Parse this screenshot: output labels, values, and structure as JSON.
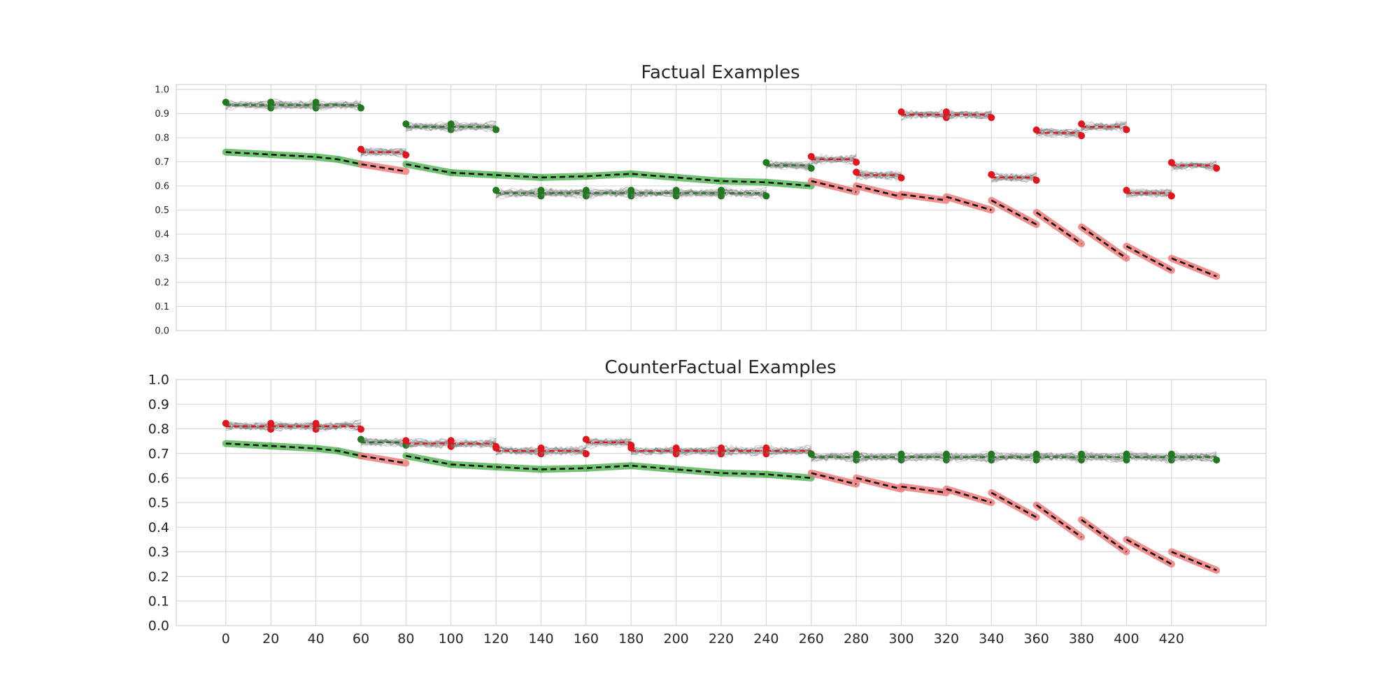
{
  "colors": {
    "grid": "#d9d9d9",
    "band": "#7a7a7a",
    "seg_green": "#1f7a1f",
    "seg_red": "#e0161d",
    "trend_black": "#111111",
    "trend_green_halo": "#5cb85c",
    "trend_red_halo": "#f07b7b"
  },
  "chart_data": [
    {
      "type": "line",
      "title": "Factual Examples",
      "xlabel": "",
      "ylabel": "",
      "xlim": [
        -22,
        462
      ],
      "ylim": [
        0,
        1.02
      ],
      "x_ticks": [
        0,
        20,
        40,
        60,
        80,
        100,
        120,
        140,
        160,
        180,
        200,
        220,
        240,
        260,
        280,
        300,
        320,
        340,
        360,
        380,
        400,
        420
      ],
      "y_ticks": [
        0.0,
        0.1,
        0.2,
        0.3,
        0.4,
        0.5,
        0.6,
        0.7,
        0.8,
        0.9,
        1.0
      ],
      "y_tick_labels": [
        "0.0",
        "0.1",
        "0.2",
        "0.3",
        "0.4",
        "0.5",
        "0.6",
        "0.7",
        "0.8",
        "0.9",
        "1.0"
      ],
      "grid": true,
      "series": [
        {
          "role": "trend",
          "points": [
            [
              0,
              0.74
            ],
            [
              20,
              0.73
            ],
            [
              40,
              0.72
            ],
            [
              50,
              0.71
            ],
            [
              60,
              0.69
            ],
            [
              80,
              0.66
            ],
            [
              80,
              0.69
            ],
            [
              100,
              0.655
            ],
            [
              120,
              0.645
            ],
            [
              140,
              0.635
            ],
            [
              160,
              0.64
            ],
            [
              180,
              0.65
            ],
            [
              200,
              0.635
            ],
            [
              220,
              0.62
            ],
            [
              240,
              0.615
            ],
            [
              260,
              0.6
            ],
            [
              260,
              0.62
            ],
            [
              280,
              0.575
            ],
            [
              280,
              0.6
            ],
            [
              300,
              0.555
            ],
            [
              300,
              0.565
            ],
            [
              320,
              0.54
            ],
            [
              320,
              0.555
            ],
            [
              340,
              0.5
            ],
            [
              340,
              0.54
            ],
            [
              360,
              0.44
            ],
            [
              360,
              0.49
            ],
            [
              380,
              0.36
            ],
            [
              380,
              0.43
            ],
            [
              400,
              0.3
            ],
            [
              400,
              0.35
            ],
            [
              420,
              0.25
            ],
            [
              420,
              0.3
            ],
            [
              440,
              0.225
            ]
          ],
          "class_by_x": [
            [
              0,
              60,
              "green"
            ],
            [
              60,
              80,
              "red"
            ],
            [
              80,
              260,
              "green"
            ],
            [
              260,
              440,
              "red"
            ]
          ]
        },
        {
          "role": "segments",
          "windows": [
            {
              "x0": 0,
              "x1": 20,
              "y": 0.935,
              "class": "green"
            },
            {
              "x0": 20,
              "x1": 40,
              "y": 0.935,
              "class": "green"
            },
            {
              "x0": 40,
              "x1": 60,
              "y": 0.935,
              "class": "green"
            },
            {
              "x0": 60,
              "x1": 80,
              "y": 0.74,
              "class": "red"
            },
            {
              "x0": 80,
              "x1": 100,
              "y": 0.845,
              "class": "green"
            },
            {
              "x0": 100,
              "x1": 120,
              "y": 0.845,
              "class": "green"
            },
            {
              "x0": 120,
              "x1": 140,
              "y": 0.57,
              "class": "green"
            },
            {
              "x0": 140,
              "x1": 160,
              "y": 0.57,
              "class": "green"
            },
            {
              "x0": 160,
              "x1": 180,
              "y": 0.57,
              "class": "green"
            },
            {
              "x0": 180,
              "x1": 200,
              "y": 0.57,
              "class": "green"
            },
            {
              "x0": 200,
              "x1": 220,
              "y": 0.57,
              "class": "green"
            },
            {
              "x0": 220,
              "x1": 240,
              "y": 0.57,
              "class": "green"
            },
            {
              "x0": 240,
              "x1": 260,
              "y": 0.685,
              "class": "green"
            },
            {
              "x0": 260,
              "x1": 280,
              "y": 0.71,
              "class": "red"
            },
            {
              "x0": 280,
              "x1": 300,
              "y": 0.645,
              "class": "red"
            },
            {
              "x0": 300,
              "x1": 320,
              "y": 0.895,
              "class": "red"
            },
            {
              "x0": 320,
              "x1": 340,
              "y": 0.895,
              "class": "red"
            },
            {
              "x0": 340,
              "x1": 360,
              "y": 0.635,
              "class": "red"
            },
            {
              "x0": 360,
              "x1": 380,
              "y": 0.82,
              "class": "red"
            },
            {
              "x0": 380,
              "x1": 400,
              "y": 0.845,
              "class": "red"
            },
            {
              "x0": 400,
              "x1": 420,
              "y": 0.57,
              "class": "red"
            },
            {
              "x0": 420,
              "x1": 440,
              "y": 0.685,
              "class": "red"
            }
          ]
        }
      ]
    },
    {
      "type": "line",
      "title": "CounterFactual Examples",
      "xlabel": "",
      "ylabel": "",
      "xlim": [
        -22,
        462
      ],
      "ylim": [
        0,
        1.0
      ],
      "x_ticks": [
        0,
        20,
        40,
        60,
        80,
        100,
        120,
        140,
        160,
        180,
        200,
        220,
        240,
        260,
        280,
        300,
        320,
        340,
        360,
        380,
        400,
        420
      ],
      "y_ticks": [
        0.0,
        0.1,
        0.2,
        0.3,
        0.4,
        0.5,
        0.6,
        0.7,
        0.8,
        0.9,
        1.0
      ],
      "y_tick_labels": [
        "0.0",
        "0.1",
        "0.2",
        "0.3",
        "0.4",
        "0.5",
        "0.6",
        "0.7",
        "0.8",
        "0.9",
        "1.0"
      ],
      "grid": true,
      "series": [
        {
          "role": "trend",
          "points": [
            [
              0,
              0.74
            ],
            [
              20,
              0.73
            ],
            [
              40,
              0.72
            ],
            [
              50,
              0.71
            ],
            [
              60,
              0.69
            ],
            [
              80,
              0.66
            ],
            [
              80,
              0.69
            ],
            [
              100,
              0.655
            ],
            [
              120,
              0.645
            ],
            [
              140,
              0.635
            ],
            [
              160,
              0.64
            ],
            [
              180,
              0.65
            ],
            [
              200,
              0.635
            ],
            [
              220,
              0.62
            ],
            [
              240,
              0.615
            ],
            [
              260,
              0.6
            ],
            [
              260,
              0.62
            ],
            [
              280,
              0.575
            ],
            [
              280,
              0.6
            ],
            [
              300,
              0.555
            ],
            [
              300,
              0.565
            ],
            [
              320,
              0.54
            ],
            [
              320,
              0.555
            ],
            [
              340,
              0.5
            ],
            [
              340,
              0.54
            ],
            [
              360,
              0.44
            ],
            [
              360,
              0.49
            ],
            [
              380,
              0.36
            ],
            [
              380,
              0.43
            ],
            [
              400,
              0.3
            ],
            [
              400,
              0.35
            ],
            [
              420,
              0.25
            ],
            [
              420,
              0.3
            ],
            [
              440,
              0.225
            ]
          ],
          "class_by_x": [
            [
              0,
              60,
              "green"
            ],
            [
              60,
              80,
              "red"
            ],
            [
              80,
              260,
              "green"
            ],
            [
              260,
              440,
              "red"
            ]
          ]
        },
        {
          "role": "segments",
          "windows": [
            {
              "x0": 0,
              "x1": 20,
              "y": 0.81,
              "class": "red"
            },
            {
              "x0": 20,
              "x1": 40,
              "y": 0.81,
              "class": "red"
            },
            {
              "x0": 40,
              "x1": 60,
              "y": 0.81,
              "class": "red"
            },
            {
              "x0": 60,
              "x1": 80,
              "y": 0.745,
              "class": "green"
            },
            {
              "x0": 80,
              "x1": 100,
              "y": 0.74,
              "class": "red"
            },
            {
              "x0": 100,
              "x1": 120,
              "y": 0.74,
              "class": "red"
            },
            {
              "x0": 120,
              "x1": 140,
              "y": 0.71,
              "class": "red"
            },
            {
              "x0": 140,
              "x1": 160,
              "y": 0.71,
              "class": "red"
            },
            {
              "x0": 160,
              "x1": 180,
              "y": 0.745,
              "class": "red"
            },
            {
              "x0": 180,
              "x1": 200,
              "y": 0.71,
              "class": "red"
            },
            {
              "x0": 200,
              "x1": 220,
              "y": 0.71,
              "class": "red"
            },
            {
              "x0": 220,
              "x1": 240,
              "y": 0.71,
              "class": "red"
            },
            {
              "x0": 240,
              "x1": 260,
              "y": 0.71,
              "class": "red"
            },
            {
              "x0": 260,
              "x1": 280,
              "y": 0.685,
              "class": "green"
            },
            {
              "x0": 280,
              "x1": 300,
              "y": 0.685,
              "class": "green"
            },
            {
              "x0": 300,
              "x1": 320,
              "y": 0.685,
              "class": "green"
            },
            {
              "x0": 320,
              "x1": 340,
              "y": 0.685,
              "class": "green"
            },
            {
              "x0": 340,
              "x1": 360,
              "y": 0.685,
              "class": "green"
            },
            {
              "x0": 360,
              "x1": 380,
              "y": 0.685,
              "class": "green"
            },
            {
              "x0": 380,
              "x1": 400,
              "y": 0.685,
              "class": "green"
            },
            {
              "x0": 400,
              "x1": 420,
              "y": 0.685,
              "class": "green"
            },
            {
              "x0": 420,
              "x1": 440,
              "y": 0.685,
              "class": "green"
            }
          ]
        }
      ]
    }
  ]
}
